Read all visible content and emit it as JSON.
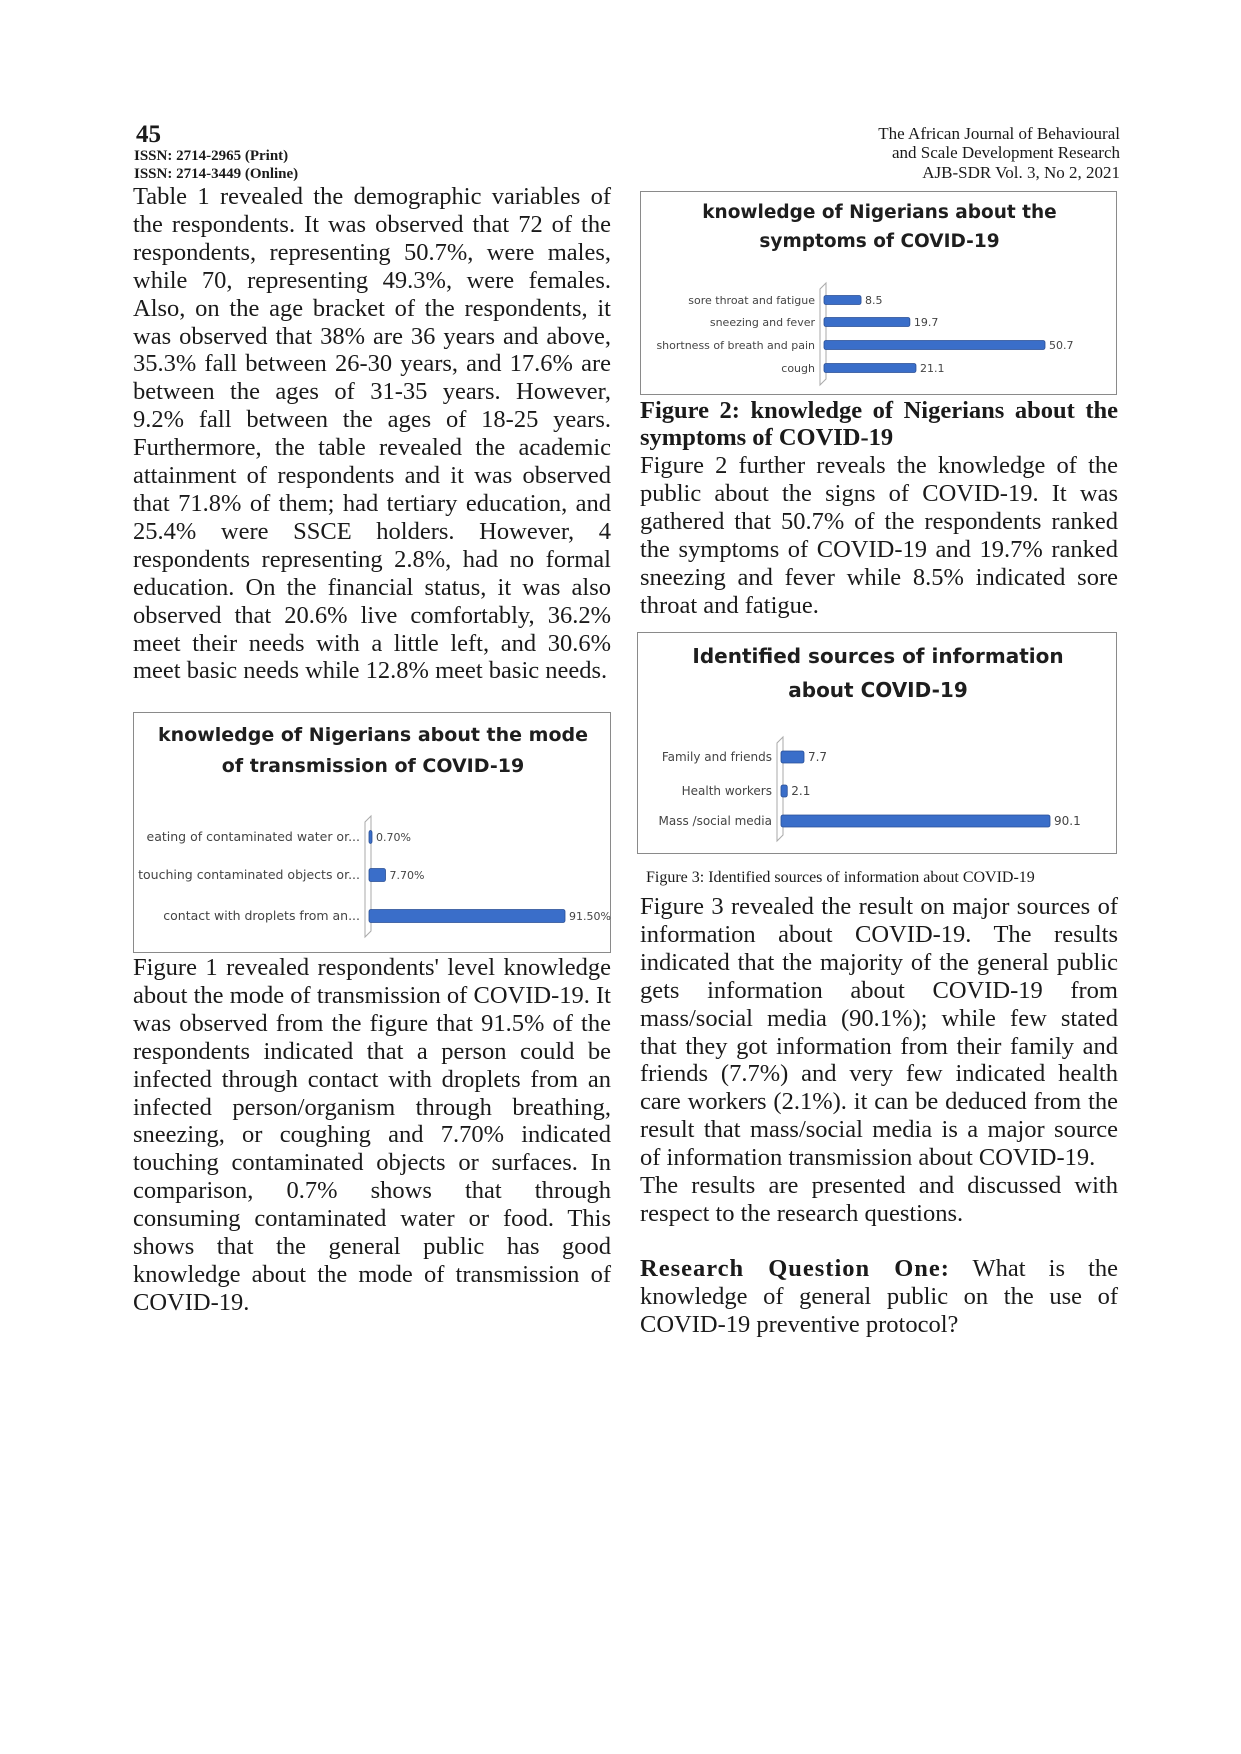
{
  "header": {
    "page_number": "45",
    "issn_print": "ISSN: 2714-2965 (Print)",
    "issn_online": "ISSN: 2714-3449 (Online)",
    "journal_line1": "The African Journal of Behavioural",
    "journal_line2": "and Scale Development Research",
    "journal_line3": "AJB-SDR Vol. 3, No 2, 2021"
  },
  "left": {
    "para1": "Table 1 revealed the demographic variables of the respondents. It was observed that 72 of the respondents, representing 50.7%, were males, while 70, representing 49.3%, were females. Also, on the age bracket of the respondents, it was observed that 38% are 36 years and above, 35.3% fall between 26-30 years, and 17.6% are between the ages of 31-35 years. However, 9.2% fall between the ages of 18-25 years. Furthermore, the table revealed the academic attainment of respondents and it was observed that 71.8% of them; had tertiary education, and 25.4% were SSCE holders. However, 4 respondents representing 2.8%, had no formal education. On the financial status, it was also observed that 20.6% live comfortably, 36.2% meet their needs with a little left, and 30.6% meet basic needs while 12.8% meet basic needs.",
    "para2": "Figure 1 revealed respondents' level knowledge about the mode of transmission of COVID-19. It was observed from the figure that 91.5% of the respondents indicated that a person could be infected through contact with droplets from an infected person/organism through breathing, sneezing, or coughing and 7.70% indicated touching contaminated objects or surfaces. In comparison, 0.7% shows that through consuming contaminated water or food. This shows that the general public has good knowledge about the mode of transmission of COVID-19."
  },
  "right": {
    "fig2_caption": "Figure 2: knowledge of Nigerians about the symptoms of COVID-19",
    "para3": "Figure 2 further reveals the knowledge of the public about the signs of COVID-19. It was gathered that 50.7% of the respondents ranked the symptoms of COVID-19 and 19.7% ranked sneezing and fever while 8.5% indicated sore throat and fatigue.",
    "fig3_caption": "Figure 3: Identified sources of information about COVID-19",
    "para4": "Figure 3 revealed the result on major sources of information about COVID-19. The results indicated that the majority of the general public gets information about COVID-19 from mass/social media (90.1%); while few stated that they got information from their family and friends (7.7%) and very few indicated health care workers (2.1%). it can be deduced from the result that mass/social media is a major source of information transmission about COVID-19.",
    "para5": "The results are presented and discussed with respect to the research questions.",
    "rq_label": "Research Question One:",
    "rq_text": " What is the knowledge of general public on the use of COVID-19 preventive protocol?"
  },
  "chart_data": [
    {
      "type": "bar",
      "orientation": "horizontal",
      "title_lines": [
        "knowledge of Nigerians about the mode",
        "of transmission of COVID-19"
      ],
      "categories": [
        "eating of contaminated water or...",
        "touching contaminated objects or...",
        "contact with droplets from an..."
      ],
      "values": [
        0.7,
        7.7,
        91.5
      ],
      "data_labels": [
        "0.70%",
        "7.70%",
        "91.50%"
      ],
      "bar_color": "#3a6ec9",
      "grid": false
    },
    {
      "type": "bar",
      "orientation": "horizontal",
      "title_lines": [
        "knowledge of Nigerians about the",
        "symptoms of COVID-19"
      ],
      "categories": [
        "sore throat and fatigue",
        "sneezing and fever",
        "shortness of breath and pain",
        "cough"
      ],
      "values": [
        8.5,
        19.7,
        50.7,
        21.1
      ],
      "data_labels": [
        "8.5",
        "19.7",
        "50.7",
        "21.1"
      ],
      "bar_color": "#3a6ec9",
      "grid": false
    },
    {
      "type": "bar",
      "orientation": "horizontal",
      "title_lines": [
        "Identified sources of information",
        "about COVID-19"
      ],
      "categories": [
        "Family and friends",
        "Health workers",
        "Mass /social media"
      ],
      "values": [
        7.7,
        2.1,
        90.1
      ],
      "data_labels": [
        "7.7",
        "2.1",
        "90.1"
      ],
      "bar_color": "#3a6ec9",
      "grid": false
    }
  ]
}
